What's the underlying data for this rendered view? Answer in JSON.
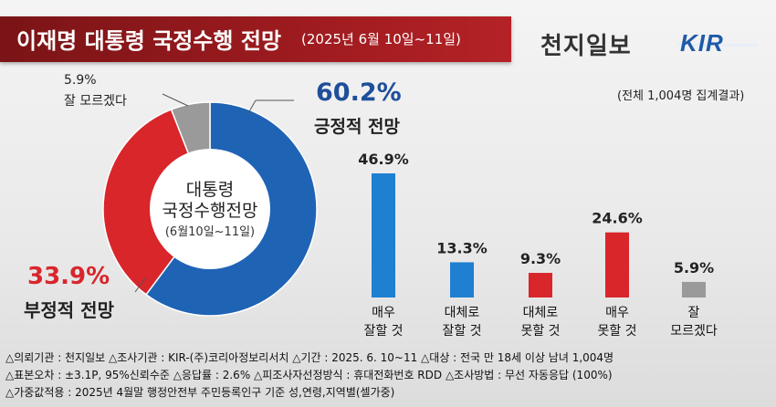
{
  "header": {
    "title": "이재명 대통령 국정수행 전망",
    "date": "(2025년 6월 10일~11일)",
    "brand": "천지일보",
    "logo": "KIR"
  },
  "sample_note": "(전체 1,004명 집계결과)",
  "donut": {
    "center_line1": "대통령",
    "center_line2": "국정수행전망",
    "center_line3": "(6월10일~11일)",
    "positive_pct": "60.2%",
    "positive_label": "긍정적 전망",
    "negative_pct": "33.9%",
    "negative_label": "부정적 전망",
    "unknown_pct": "5.9%",
    "unknown_label": "잘 모르겠다"
  },
  "chart_data": [
    {
      "type": "pie",
      "categories": [
        "긍정적 전망",
        "부정적 전망",
        "잘 모르겠다"
      ],
      "values": [
        60.2,
        33.9,
        5.9
      ],
      "colors": [
        "#1f63b5",
        "#d8262b",
        "#9a9a9a"
      ]
    },
    {
      "type": "bar",
      "categories": [
        "매우 잘할 것",
        "대체로 잘할 것",
        "대체로 못할 것",
        "매우 못할 것",
        "잘 모르겠다"
      ],
      "category_lines": [
        [
          "매우",
          "잘할 것"
        ],
        [
          "대체로",
          "잘할 것"
        ],
        [
          "대체로",
          "못할 것"
        ],
        [
          "매우",
          "못할 것"
        ],
        [
          "잘",
          "모르겠다"
        ]
      ],
      "values": [
        46.9,
        13.3,
        9.3,
        24.6,
        5.9
      ],
      "value_labels": [
        "46.9%",
        "13.3%",
        "9.3%",
        "24.6%",
        "5.9%"
      ],
      "colors": [
        "#1f7fd1",
        "#1f7fd1",
        "#d8262b",
        "#d8262b",
        "#9a9a9a"
      ],
      "ylim": [
        0,
        50
      ]
    }
  ],
  "footer": {
    "line1": "△의뢰기관 : 천지일보    △조사기관 : KIR-(주)코리아정보리서치   △기간 : 2025. 6. 10~11   △대상 : 전국 만 18세 이상 남녀 1,004명",
    "line2": "△표본오차 : ±3.1P, 95%신뢰수준   △응답률 : 2.6%   △피조사자선정방식 : 휴대전화번호 RDD   △조사방법 : 무선 자동응답 (100%)",
    "line3": "△가중값적용 : 2025년 4월말 행정안전부 주민등록인구 기준 성,연령,지역별(셀가중)"
  }
}
